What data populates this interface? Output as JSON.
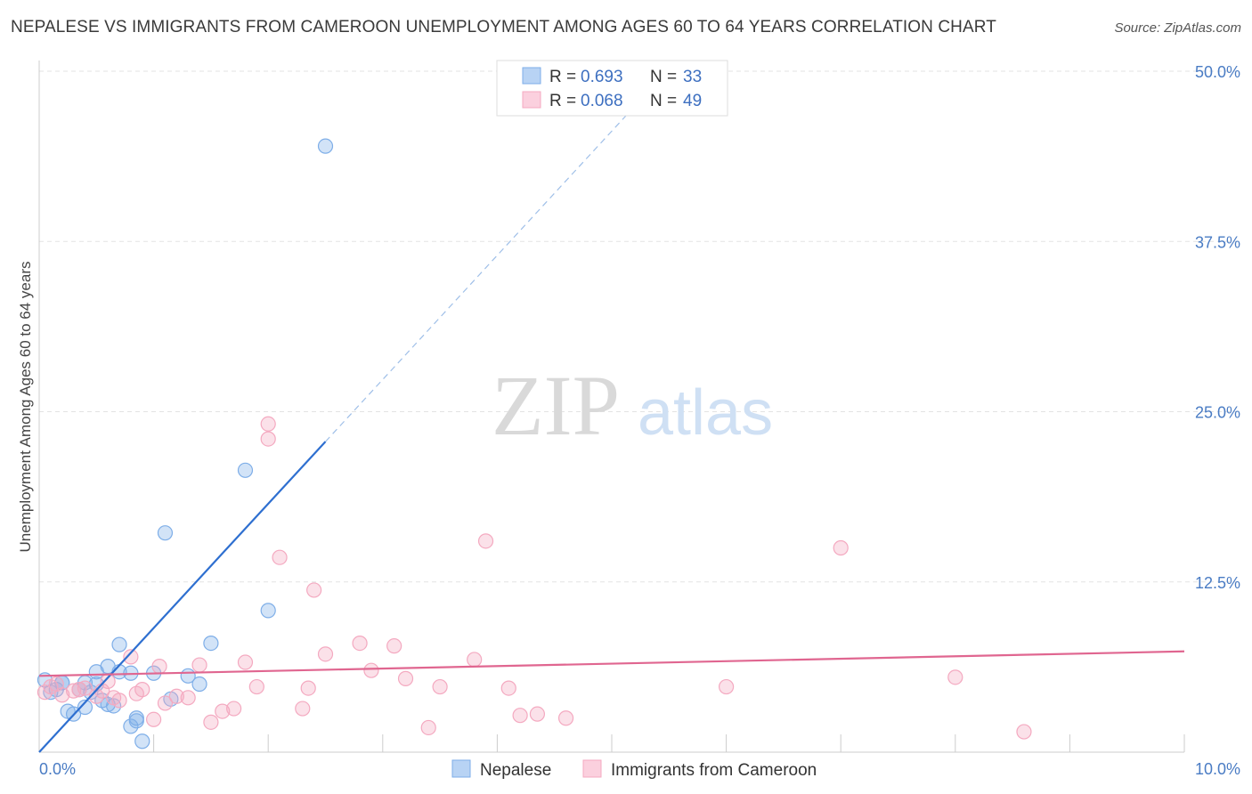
{
  "title": "NEPALESE VS IMMIGRANTS FROM CAMEROON UNEMPLOYMENT AMONG AGES 60 TO 64 YEARS CORRELATION CHART",
  "source": "Source: ZipAtlas.com",
  "watermark": {
    "zip": "ZIP",
    "atlas": "atlas"
  },
  "legend": {
    "r_label": "R =",
    "n_label": "N =",
    "rows": [
      {
        "r": "0.693",
        "n": "33"
      },
      {
        "r": "0.068",
        "n": "49"
      }
    ]
  },
  "chart_data": {
    "type": "scatter",
    "title": "NEPALESE VS IMMIGRANTS FROM CAMEROON UNEMPLOYMENT AMONG AGES 60 TO 64 YEARS CORRELATION CHART",
    "xlabel": "",
    "ylabel": "Unemployment Among Ages 60 to 64 years",
    "xlim": [
      0,
      10
    ],
    "ylim": [
      0,
      50
    ],
    "x_tick_labels": [
      "0.0%",
      "10.0%"
    ],
    "y_ticks": [
      12.5,
      25.0,
      37.5,
      50.0
    ],
    "y_tick_labels": [
      "12.5%",
      "25.0%",
      "37.5%",
      "50.0%"
    ],
    "grid": true,
    "series": [
      {
        "name": "Nepalese",
        "color": "#7eaee8",
        "line_color": "#2e6fd0",
        "R": 0.693,
        "N": 33,
        "trend": {
          "x0": 0,
          "y0": 0,
          "x1": 2.5,
          "y1": 22.8,
          "dash_to_x": 5.2
        },
        "points": [
          [
            0.05,
            5.3
          ],
          [
            0.1,
            4.4
          ],
          [
            0.15,
            4.6
          ],
          [
            0.2,
            5.1
          ],
          [
            0.25,
            3.0
          ],
          [
            0.3,
            2.8
          ],
          [
            0.35,
            4.6
          ],
          [
            0.4,
            5.1
          ],
          [
            0.4,
            3.3
          ],
          [
            0.5,
            5.0
          ],
          [
            0.5,
            5.9
          ],
          [
            0.55,
            3.8
          ],
          [
            0.6,
            3.5
          ],
          [
            0.6,
            6.3
          ],
          [
            0.65,
            3.4
          ],
          [
            0.7,
            7.9
          ],
          [
            0.7,
            5.9
          ],
          [
            0.8,
            5.8
          ],
          [
            0.8,
            1.9
          ],
          [
            0.85,
            2.3
          ],
          [
            0.85,
            2.5
          ],
          [
            0.9,
            0.8
          ],
          [
            1.0,
            5.8
          ],
          [
            1.1,
            16.1
          ],
          [
            1.15,
            3.9
          ],
          [
            1.3,
            5.6
          ],
          [
            1.4,
            5.0
          ],
          [
            1.5,
            8.0
          ],
          [
            1.8,
            20.7
          ],
          [
            2.0,
            10.4
          ],
          [
            2.5,
            44.5
          ],
          [
            0.2,
            5.1
          ],
          [
            0.45,
            4.4
          ]
        ]
      },
      {
        "name": "Immigrants from Cameroon",
        "color": "#f4a9c0",
        "line_color": "#e06690",
        "R": 0.068,
        "N": 49,
        "trend": {
          "x0": 0,
          "y0": 5.6,
          "x1": 10,
          "y1": 7.4
        },
        "points": [
          [
            0.05,
            4.4
          ],
          [
            0.1,
            4.8
          ],
          [
            0.15,
            5.0
          ],
          [
            0.2,
            4.2
          ],
          [
            0.3,
            4.5
          ],
          [
            0.35,
            4.6
          ],
          [
            0.4,
            4.7
          ],
          [
            0.5,
            4.1
          ],
          [
            0.55,
            4.5
          ],
          [
            0.6,
            5.2
          ],
          [
            0.65,
            4.0
          ],
          [
            0.7,
            3.8
          ],
          [
            0.8,
            7.0
          ],
          [
            0.85,
            4.3
          ],
          [
            0.9,
            4.6
          ],
          [
            1.0,
            2.4
          ],
          [
            1.05,
            6.3
          ],
          [
            1.1,
            3.6
          ],
          [
            1.2,
            4.1
          ],
          [
            1.3,
            4.0
          ],
          [
            1.4,
            6.4
          ],
          [
            1.5,
            2.2
          ],
          [
            1.6,
            3.0
          ],
          [
            1.7,
            3.2
          ],
          [
            1.8,
            6.6
          ],
          [
            1.9,
            4.8
          ],
          [
            2.0,
            23.0
          ],
          [
            2.0,
            24.1
          ],
          [
            2.1,
            14.3
          ],
          [
            2.3,
            3.2
          ],
          [
            2.35,
            4.7
          ],
          [
            2.4,
            11.9
          ],
          [
            2.5,
            7.2
          ],
          [
            2.8,
            8.0
          ],
          [
            2.9,
            6.0
          ],
          [
            3.1,
            7.8
          ],
          [
            3.2,
            5.4
          ],
          [
            3.4,
            1.8
          ],
          [
            3.5,
            4.8
          ],
          [
            3.8,
            6.8
          ],
          [
            3.9,
            15.5
          ],
          [
            4.1,
            4.7
          ],
          [
            4.2,
            2.7
          ],
          [
            4.35,
            2.8
          ],
          [
            4.6,
            2.5
          ],
          [
            6.0,
            4.8
          ],
          [
            7.0,
            15.0
          ],
          [
            8.0,
            5.5
          ],
          [
            8.6,
            1.5
          ]
        ]
      }
    ]
  },
  "bottom_legend": [
    {
      "label": "Nepalese"
    },
    {
      "label": "Immigrants from Cameroon"
    }
  ]
}
